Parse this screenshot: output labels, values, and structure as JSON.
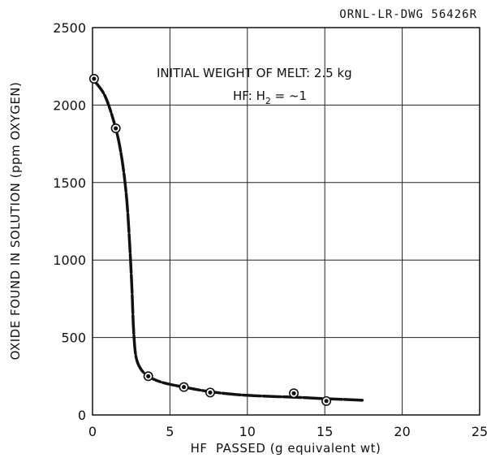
{
  "drawing_ref": "ORNL-LR-DWG 56426R",
  "annotation": {
    "line1": "INITIAL WEIGHT OF MELT: 2.5 kg",
    "line2_prefix": "HF: H",
    "line2_sub": "2",
    "line2_suffix": " = ~1"
  },
  "chart_data": {
    "type": "scatter",
    "title": "",
    "xlabel": "HF  PASSED (g equivalent wt)",
    "ylabel": "OXIDE FOUND IN SOLUTION (ppm OXYGEN)",
    "xlim": [
      0,
      25
    ],
    "ylim": [
      0,
      2500
    ],
    "x_ticks": [
      0,
      5,
      10,
      15,
      20,
      25
    ],
    "y_ticks": [
      0,
      500,
      1000,
      1500,
      2000,
      2500
    ],
    "x_tick_labels": [
      "0",
      "5",
      "10",
      "15",
      "20",
      "25"
    ],
    "y_tick_labels": [
      "0",
      "500",
      "1000",
      "1500",
      "2000",
      "2500"
    ],
    "grid": true,
    "series": [
      {
        "points": [
          {
            "x": 0.1,
            "y": 2170
          },
          {
            "x": 1.5,
            "y": 1850
          },
          {
            "x": 3.6,
            "y": 250
          },
          {
            "x": 5.9,
            "y": 180
          },
          {
            "x": 7.6,
            "y": 145
          },
          {
            "x": 13.0,
            "y": 140
          },
          {
            "x": 15.1,
            "y": 90
          }
        ],
        "fitted_curve": [
          [
            0,
            2170
          ],
          [
            0.8,
            2060
          ],
          [
            1.5,
            1850
          ],
          [
            1.9,
            1650
          ],
          [
            2.2,
            1400
          ],
          [
            2.4,
            1100
          ],
          [
            2.55,
            800
          ],
          [
            2.65,
            550
          ],
          [
            2.8,
            380
          ],
          [
            3.1,
            300
          ],
          [
            3.6,
            250
          ],
          [
            4.5,
            210
          ],
          [
            5.9,
            180
          ],
          [
            7.6,
            150
          ],
          [
            9.5,
            130
          ],
          [
            11.5,
            120
          ],
          [
            13.0,
            115
          ],
          [
            15.1,
            105
          ],
          [
            17.5,
            95
          ]
        ]
      }
    ],
    "colors": {
      "ink": "#111111",
      "grid": "#222222",
      "background": "#ffffff"
    }
  }
}
